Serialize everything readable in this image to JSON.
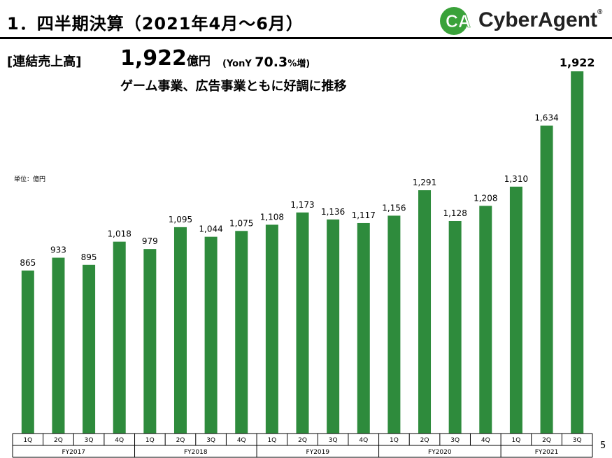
{
  "header": {
    "title": "1．四半期決算（2021年4月～6月）",
    "logo_text": "CyberAgent",
    "logo_mark": "CA"
  },
  "headline": {
    "label": "[連結売上高]",
    "value": "1,922",
    "unit": "億円",
    "yoy_prefix": "(YonY ",
    "yoy_value": "70.3",
    "yoy_suffix": "%増)",
    "subline": "ゲーム事業、広告事業ともに好調に推移"
  },
  "unit_note": "単位：億円",
  "page_number": "5",
  "colors": {
    "bar": "#2e8b3c",
    "logo_green": "#3aa23a"
  },
  "chart_data": {
    "type": "bar",
    "title": "",
    "xlabel": "",
    "ylabel": "",
    "ylim": [
      0,
      2000
    ],
    "grid": false,
    "categories": [
      "1Q",
      "2Q",
      "3Q",
      "4Q",
      "1Q",
      "2Q",
      "3Q",
      "4Q",
      "1Q",
      "2Q",
      "3Q",
      "4Q",
      "1Q",
      "2Q",
      "3Q",
      "4Q",
      "1Q",
      "2Q",
      "3Q"
    ],
    "groups": [
      {
        "label": "FY2017",
        "count": 4
      },
      {
        "label": "FY2018",
        "count": 4
      },
      {
        "label": "FY2019",
        "count": 4
      },
      {
        "label": "FY2020",
        "count": 4
      },
      {
        "label": "FY2021",
        "count": 3
      }
    ],
    "values": [
      865,
      933,
      895,
      1018,
      979,
      1095,
      1044,
      1075,
      1108,
      1173,
      1136,
      1117,
      1156,
      1291,
      1128,
      1208,
      1310,
      1634,
      1922
    ],
    "data_labels": [
      "865",
      "933",
      "895",
      "1,018",
      "979",
      "1,095",
      "1,044",
      "1,075",
      "1,108",
      "1,173",
      "1,136",
      "1,117",
      "1,156",
      "1,291",
      "1,128",
      "1,208",
      "1,310",
      "1,634",
      "1,922"
    ]
  }
}
